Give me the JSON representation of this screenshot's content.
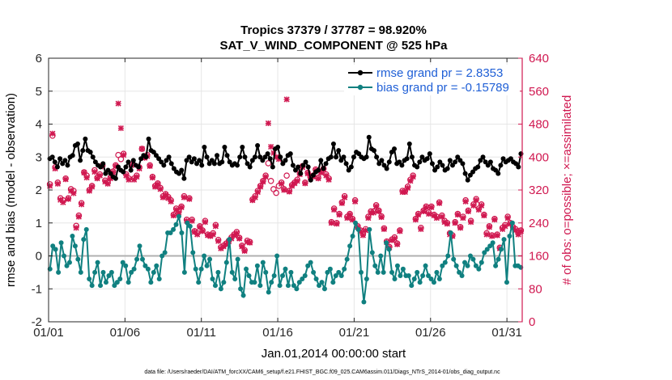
{
  "chart_data": {
    "type": "line",
    "title": "Tropics 37379 / 37787 = 98.920%",
    "subtitle": "SAT_V_WIND_COMPONENT @ 525 hPa",
    "xlabel": "Jan.01,2014 00:00:00 start",
    "ylabel_left": "rmse and bias (model - observation)",
    "ylabel_right": "# of obs: o=possible; ×=assimilated",
    "ylim_left": [
      -2,
      6
    ],
    "ylim_right": [
      0,
      640
    ],
    "xlim": [
      0,
      31
    ],
    "x_tick_values": [
      0,
      5,
      10,
      15,
      20,
      25,
      30
    ],
    "x_tick_labels": [
      "01/01",
      "01/06",
      "01/11",
      "01/16",
      "01/21",
      "01/26",
      "01/31"
    ],
    "y_left_ticks": [
      "-2",
      "-1",
      "0",
      "1",
      "2",
      "3",
      "4",
      "5",
      "6"
    ],
    "y_right_ticks": [
      "0",
      "80",
      "160",
      "240",
      "320",
      "400",
      "480",
      "560",
      "640"
    ],
    "footnote": "data file: /Users/raeder/DAI/ATM_forcXX/CAM6_setup/f.e21.FHIST_BGC.f09_025.CAM6assim.011/Diags_NTrS_2014-01/obs_diag_output.nc",
    "legend_position": "top-right",
    "colors": {
      "rmse": "#000000",
      "bias": "#108080",
      "counts": "#d01850",
      "zero_line": "#b0b0b0",
      "right_axis": "#d01850",
      "legend_text": "#1f5fd6"
    },
    "series": [
      {
        "name": "rmse grand pr = 2.8353",
        "axis": "left",
        "color": "#000000",
        "values": [
          2.95,
          3.0,
          2.85,
          2.7,
          2.95,
          2.8,
          2.9,
          2.75,
          3.0,
          3.05,
          3.35,
          3.4,
          2.9,
          3.2,
          3.55,
          3.2,
          3.15,
          3.0,
          2.85,
          2.75,
          2.7,
          2.8,
          2.5,
          2.6,
          2.5,
          2.4,
          2.35,
          2.7,
          2.6,
          2.55,
          2.7,
          2.85,
          2.6,
          2.9,
          2.75,
          2.7,
          2.95,
          3.05,
          3.0,
          3.55,
          3.2,
          3.15,
          3.05,
          2.95,
          2.85,
          2.75,
          2.9,
          3.0,
          2.8,
          2.65,
          2.55,
          2.5,
          2.6,
          2.35,
          2.9,
          3.0,
          2.85,
          2.95,
          2.8,
          2.9,
          2.75,
          3.3,
          3.0,
          2.8,
          2.9,
          2.8,
          3.05,
          2.8,
          2.85,
          3.3,
          3.05,
          2.85,
          2.75,
          2.8,
          2.75,
          3.0,
          3.3,
          3.0,
          2.8,
          2.7,
          2.9,
          3.0,
          3.35,
          3.0,
          2.9,
          3.0,
          3.1,
          2.95,
          2.7,
          3.25,
          3.3,
          3.0,
          2.8,
          2.9,
          3.05,
          3.1,
          2.75,
          2.6,
          2.7,
          2.5,
          2.75,
          2.85,
          2.7,
          2.3,
          2.45,
          2.55,
          2.6,
          2.9,
          2.65,
          2.8,
          2.95,
          3.0,
          3.4,
          3.0,
          3.2,
          2.9,
          3.0,
          2.8,
          2.6,
          2.7,
          3.0,
          3.15,
          3.1,
          3.0,
          2.95,
          3.0,
          3.6,
          3.25,
          3.2,
          3.0,
          2.8,
          2.9,
          2.75,
          2.65,
          2.85,
          3.15,
          3.25,
          2.8,
          2.85,
          2.75,
          2.9,
          2.95,
          3.4,
          3.0,
          2.75,
          2.7,
          2.85,
          3.0,
          2.9,
          2.95,
          3.1,
          2.8,
          2.6,
          2.7,
          2.85,
          2.75,
          2.6,
          2.65,
          2.9,
          2.75,
          2.85,
          3.0,
          2.9,
          2.8,
          2.5,
          2.3,
          2.45,
          2.55,
          2.65,
          2.7,
          2.9,
          3.0,
          2.85,
          2.75,
          2.85,
          2.65,
          2.6,
          2.5,
          2.75,
          2.95,
          2.85,
          2.9,
          2.95,
          2.85,
          2.8,
          2.7,
          3.1
        ]
      },
      {
        "name": "bias grand pr = -0.15789",
        "axis": "left",
        "color": "#108080",
        "values": [
          -0.4,
          0.3,
          0.2,
          -0.5,
          0.4,
          0.0,
          -0.3,
          -0.2,
          0.6,
          0.3,
          -0.1,
          -0.5,
          0.5,
          0.8,
          -0.7,
          -0.9,
          -0.5,
          -0.2,
          -0.9,
          -0.5,
          -0.8,
          -0.6,
          -0.5,
          -0.9,
          -0.8,
          -0.7,
          -0.2,
          -0.3,
          -0.8,
          -0.5,
          -0.4,
          -0.1,
          0.3,
          -0.1,
          -0.3,
          -0.4,
          -0.8,
          -0.5,
          -0.3,
          -0.7,
          0.0,
          0.1,
          0.7,
          0.7,
          0.8,
          0.95,
          1.2,
          0.7,
          -0.5,
          1.0,
          0.9,
          0.1,
          -0.4,
          -0.8,
          -0.4,
          0.0,
          -0.3,
          -0.1,
          -0.7,
          -0.9,
          -0.5,
          -1.0,
          -0.8,
          -0.2,
          0.5,
          -0.5,
          -0.7,
          -0.1,
          -1.0,
          -1.2,
          -0.4,
          -0.6,
          -0.8,
          -0.8,
          -0.3,
          -0.9,
          -0.2,
          -0.5,
          -1.1,
          -0.8,
          -0.6,
          0.0,
          -0.9,
          -0.6,
          -0.4,
          -0.9,
          -0.5,
          -0.9,
          -1.0,
          -0.8,
          -0.7,
          -0.6,
          -0.3,
          -0.2,
          -0.5,
          -0.7,
          -0.9,
          -0.8,
          -1.0,
          -0.5,
          -0.4,
          -0.8,
          -0.6,
          -0.5,
          -0.6,
          -0.4,
          -0.1,
          0.3,
          0.6,
          1.0,
          0.8,
          -0.5,
          -1.4,
          -0.7,
          0.8,
          0.1,
          -0.3,
          -0.5,
          0.0,
          -0.5,
          0.4,
          0.2,
          -0.5,
          -0.7,
          -0.3,
          -0.6,
          -0.4,
          -0.6,
          -0.6,
          -0.9,
          -0.7,
          -0.5,
          -0.8,
          -0.6,
          -0.3,
          -0.6,
          -0.7,
          -0.8,
          -0.5,
          -0.7,
          -0.3,
          -0.2,
          0.0,
          0.7,
          -0.1,
          -0.3,
          -0.5,
          -0.6,
          -0.2,
          -0.3,
          0.0,
          -0.1,
          -0.3,
          -0.4,
          -0.2,
          0.1,
          0.2,
          0.3,
          0.4,
          -0.3,
          -0.1,
          0.2,
          0.5,
          -0.8,
          0.6,
          1.0,
          -0.3,
          -0.3,
          -0.35
        ]
      },
      {
        "name": "possible",
        "axis": "right",
        "color": "#d01850",
        "marker": "o",
        "values": [
          334,
          452,
          375,
          338,
          300,
          295,
          348,
          300,
          322,
          318,
          233,
          258,
          288,
          363,
          355,
          320,
          330,
          368,
          350,
          358,
          380,
          343,
          338,
          350,
          365,
          380,
          405,
          395,
          408,
          358,
          348,
          382,
          348,
          355,
          375,
          420,
          400,
          405,
          380,
          352,
          330,
          336,
          325,
          305,
          310,
          303,
          295,
          260,
          275,
          268,
          280,
          305,
          248,
          300,
          248,
          220,
          215,
          232,
          222,
          245,
          212,
          210,
          215,
          235,
          199,
          181,
          185,
          190,
          197,
          205,
          212,
          218,
          204,
          185,
          174,
          197,
          194,
          297,
          305,
          318,
          330,
          342,
          355,
          385,
          342,
          322,
          313,
          330,
          338,
          322,
          355,
          318,
          332,
          338,
          345,
          360,
          378,
          338,
          362,
          352,
          355,
          370,
          350,
          365,
          372,
          358,
          348,
          242,
          275,
          240,
          262,
          290,
          305,
          255,
          262,
          250,
          295,
          232,
          222,
          213,
          225,
          255,
          268,
          268,
          283,
          270,
          256,
          227,
          195,
          182,
          200,
          205,
          190,
          222,
          318,
          318,
          328,
          345,
          355,
          250,
          262,
          228,
          270,
          280,
          265,
          280,
          260,
          255,
          290,
          258,
          245,
          240,
          215,
          210,
          242,
          262,
          230,
          255,
          295,
          270,
          245,
          285,
          298,
          275,
          285,
          260,
          215,
          232,
          210,
          250,
          212,
          180,
          228,
          235,
          255,
          240,
          230,
          225,
          215,
          222
        ]
      },
      {
        "name": "assimilated",
        "axis": "right",
        "color": "#d01850",
        "marker": "x",
        "values": [
          330,
          457,
          372,
          335,
          296,
          290,
          346,
          298,
          318,
          312,
          228,
          255,
          285,
          362,
          350,
          318,
          328,
          364,
          348,
          355,
          377,
          340,
          335,
          348,
          363,
          378,
          530,
          470,
          405,
          355,
          345,
          380,
          345,
          352,
          372,
          420,
          398,
          402,
          378,
          350,
          328,
          334,
          322,
          302,
          308,
          300,
          292,
          258,
          272,
          265,
          278,
          302,
          245,
          298,
          245,
          218,
          212,
          230,
          220,
          242,
          210,
          208,
          212,
          232,
          196,
          178,
          183,
          188,
          195,
          202,
          210,
          215,
          202,
          183,
          172,
          194,
          192,
          295,
          302,
          315,
          328,
          340,
          352,
          482,
          425,
          410,
          400,
          395,
          335,
          320,
          540,
          316,
          330,
          336,
          342,
          358,
          375,
          336,
          360,
          350,
          352,
          368,
          348,
          362,
          370,
          355,
          345,
          240,
          272,
          238,
          260,
          288,
          302,
          252,
          260,
          248,
          292,
          230,
          220,
          210,
          222,
          252,
          265,
          265,
          280,
          268,
          254,
          225,
          193,
          180,
          198,
          202,
          188,
          220,
          315,
          315,
          325,
          342,
          352,
          248,
          260,
          225,
          268,
          278,
          262,
          278,
          258,
          252,
          288,
          255,
          242,
          238,
          212,
          208,
          240,
          260,
          228,
          252,
          292,
          268,
          242,
          282,
          295,
          272,
          282,
          258,
          212,
          230,
          208,
          248,
          210,
          178,
          225,
          232,
          252,
          238,
          228,
          222,
          212,
          220
        ]
      }
    ]
  }
}
